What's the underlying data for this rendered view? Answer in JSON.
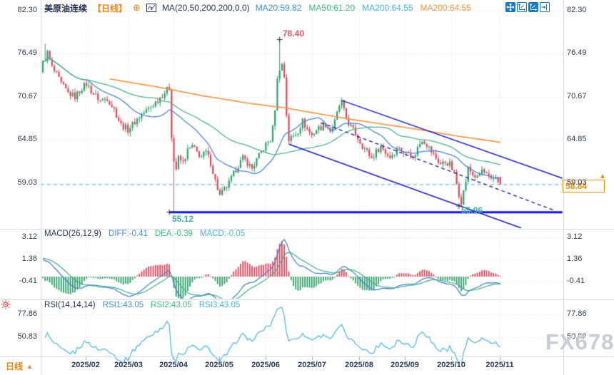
{
  "header": {
    "symbol": "美原油连续",
    "period_tag": "【日线】",
    "ma_settings": "MA(20,50,200,200,0,0)",
    "ma_values": [
      {
        "label": "MA20:59.82",
        "color": "#3f8fdd"
      },
      {
        "label": "MA50:61.20",
        "color": "#3dbd7d"
      },
      {
        "label": "MA200:64.55",
        "color": "#45b5e8"
      },
      {
        "label": "MA200:64.55",
        "color": "#f5923e"
      }
    ]
  },
  "toolbar": {
    "icons": [
      "pan-icon",
      "axis-scale-icon",
      "axis-scale-active-icon",
      "collapse-panel-icon"
    ]
  },
  "macd_panel": {
    "title": "MACD(26,12,9)",
    "values": [
      {
        "label": "DIFF:-0.41",
        "color": "#3f8fdd"
      },
      {
        "label": "DEA:-0.39",
        "color": "#3dbd7d"
      },
      {
        "label": "MACD:-0.05",
        "color": "#45b5e8"
      }
    ]
  },
  "rsi_panel": {
    "title": "RSI(14,14,14)",
    "values": [
      {
        "label": "RSI1:43.05",
        "color": "#3f8fdd"
      },
      {
        "label": "RSI2:43.05",
        "color": "#3dbd7d"
      },
      {
        "label": "RSI3:43.05",
        "color": "#45b5e8"
      }
    ]
  },
  "annotations": {
    "high_label": "78.40",
    "support_label": "55.12",
    "low_label": "55.96",
    "current_price": "58.84",
    "up_arrow": "▲"
  },
  "bottom_bar": {
    "period": "日线",
    "arrow": "▲"
  },
  "watermark": "FX678",
  "chart_data": {
    "type": "candlestick",
    "title": "美原油连续 daily (WTI crude continuous)",
    "timeframe": "daily",
    "months": [
      "2025/02",
      "2025/03",
      "2025/04",
      "2025/05",
      "2025/06",
      "2025/07",
      "2025/08",
      "2025/09",
      "2025/10",
      "2025/11"
    ],
    "y_ticks": {
      "main": [
        82.3,
        76.49,
        70.67,
        64.85,
        59.03
      ],
      "macd": [
        3.12,
        1.36,
        -0.41
      ],
      "rsi": [
        77.86,
        50.83
      ]
    },
    "key_levels": {
      "spike_high": 78.4,
      "support": 55.12,
      "october_low": 55.96,
      "last_price": 58.84,
      "ma20": 59.82,
      "ma50": 61.2,
      "ma200": 64.55,
      "diff": -0.41,
      "dea": -0.39,
      "macd": -0.05,
      "rsi": 43.05
    },
    "n_candles": 200,
    "open0": 74.0,
    "anchors": [
      [
        0,
        75.2
      ],
      [
        2,
        76.6
      ],
      [
        4,
        74.6
      ],
      [
        6,
        73.6
      ],
      [
        8,
        72.4
      ],
      [
        11,
        71.2
      ],
      [
        14,
        70.7
      ],
      [
        17,
        71.9
      ],
      [
        19,
        72.4
      ],
      [
        22,
        71.1
      ],
      [
        25,
        70.2
      ],
      [
        28,
        70.5
      ],
      [
        31,
        69.0
      ],
      [
        34,
        66.9
      ],
      [
        37,
        66.3
      ],
      [
        40,
        67.3
      ],
      [
        43,
        68.3
      ],
      [
        47,
        69.3
      ],
      [
        51,
        70.6
      ],
      [
        53,
        71.3
      ],
      [
        55,
        71.9
      ],
      [
        56,
        65.5
      ],
      [
        57,
        62.0
      ],
      [
        58,
        61.0
      ],
      [
        59,
        62.4
      ],
      [
        61,
        61.8
      ],
      [
        63,
        63.4
      ],
      [
        65,
        64.0
      ],
      [
        67,
        63.2
      ],
      [
        69,
        62.6
      ],
      [
        71,
        63.2
      ],
      [
        73,
        61.8
      ],
      [
        75,
        59.4
      ],
      [
        77,
        57.3
      ],
      [
        79,
        58.2
      ],
      [
        81,
        59.0
      ],
      [
        83,
        60.3
      ],
      [
        85,
        61.5
      ],
      [
        87,
        62.4
      ],
      [
        89,
        61.8
      ],
      [
        91,
        61.0
      ],
      [
        93,
        62.2
      ],
      [
        95,
        63.2
      ],
      [
        97,
        64.2
      ],
      [
        99,
        64.9
      ],
      [
        100,
        66.4
      ],
      [
        101,
        69.2
      ],
      [
        102,
        72.9
      ],
      [
        103,
        74.6
      ],
      [
        104,
        75.0
      ],
      [
        105,
        73.4
      ],
      [
        106,
        68.3
      ],
      [
        107,
        64.9
      ],
      [
        109,
        65.4
      ],
      [
        111,
        66.1
      ],
      [
        113,
        67.4
      ],
      [
        115,
        66.3
      ],
      [
        117,
        65.5
      ],
      [
        119,
        66.3
      ],
      [
        121,
        66.6
      ],
      [
        123,
        67.0
      ],
      [
        125,
        66.1
      ],
      [
        127,
        67.3
      ],
      [
        129,
        69.5
      ],
      [
        130,
        69.9
      ],
      [
        131,
        68.7
      ],
      [
        133,
        67.1
      ],
      [
        135,
        66.2
      ],
      [
        137,
        65.2
      ],
      [
        139,
        64.1
      ],
      [
        141,
        63.3
      ],
      [
        143,
        62.4
      ],
      [
        145,
        63.3
      ],
      [
        147,
        64.0
      ],
      [
        149,
        63.2
      ],
      [
        151,
        62.6
      ],
      [
        153,
        63.3
      ],
      [
        155,
        64.0
      ],
      [
        157,
        62.9
      ],
      [
        159,
        63.6
      ],
      [
        161,
        62.3
      ],
      [
        163,
        63.8
      ],
      [
        165,
        65.0
      ],
      [
        167,
        64.3
      ],
      [
        169,
        63.3
      ],
      [
        171,
        62.4
      ],
      [
        173,
        61.6
      ],
      [
        175,
        61.9
      ],
      [
        177,
        61.6
      ],
      [
        179,
        60.3
      ],
      [
        180,
        58.9
      ],
      [
        181,
        57.6
      ],
      [
        182,
        56.6
      ],
      [
        183,
        57.9
      ],
      [
        184,
        59.4
      ],
      [
        185,
        61.0
      ],
      [
        186,
        60.6
      ],
      [
        187,
        60.2
      ],
      [
        189,
        59.7
      ],
      [
        191,
        60.8
      ],
      [
        193,
        60.1
      ],
      [
        195,
        59.3
      ],
      [
        197,
        60.0
      ],
      [
        199,
        58.84
      ]
    ],
    "specials": [
      {
        "i": 1,
        "h": 77.85
      },
      {
        "i": 57,
        "l": 55.12
      },
      {
        "i": 103,
        "h": 78.4
      },
      {
        "i": 182,
        "l": 55.96
      },
      {
        "i": 199,
        "o": 59.9,
        "c": 58.84
      }
    ],
    "ma200_anchors": [
      [
        29,
        73.1
      ],
      [
        50,
        72.0
      ],
      [
        70,
        70.8
      ],
      [
        90,
        69.8
      ],
      [
        105,
        69.2
      ],
      [
        120,
        68.4
      ],
      [
        135,
        67.6
      ],
      [
        150,
        66.9
      ],
      [
        165,
        66.2
      ],
      [
        180,
        65.4
      ],
      [
        199,
        64.55
      ]
    ],
    "trendlines": [
      {
        "name": "support-line",
        "style": "solid",
        "width": 3,
        "color": "#1212e8",
        "points_ip": [
          [
            55,
            55.12
          ],
          [
            226,
            55.12
          ]
        ]
      },
      {
        "name": "current-price-line",
        "style": "dashed",
        "width": 1.2,
        "color": "#4aa4f4",
        "points_ip": [
          [
            -1,
            58.84
          ],
          [
            226,
            58.84
          ]
        ]
      },
      {
        "name": "channel-upper",
        "style": "solid",
        "width": 1.5,
        "color": "#1a1ace",
        "points_ip": [
          [
            130,
            70.2
          ],
          [
            226,
            59.7
          ]
        ]
      },
      {
        "name": "channel-lower",
        "style": "solid",
        "width": 1.5,
        "color": "#1a1ace",
        "points_ip": [
          [
            107,
            64.3
          ],
          [
            208,
            53.0
          ]
        ]
      },
      {
        "name": "channel-mid",
        "style": "dashed",
        "width": 1.3,
        "color": "#15159e",
        "points_ip": [
          [
            121,
            67.2
          ],
          [
            223,
            55.3
          ]
        ]
      }
    ],
    "markers": [
      {
        "i": 103,
        "p": 78.4
      },
      {
        "i": 55,
        "p": 55.12
      },
      {
        "i": 181,
        "p": 55.96
      }
    ],
    "colors": {
      "up": "#27a269",
      "down": "#e2455a",
      "ma20": "#4a86d9",
      "ma50": "#4db48a",
      "ma200": "#f5923e",
      "hist_pos": "#e2455a",
      "hist_neg": "#2fa06a",
      "diff": "#3a7bd5",
      "dea": "#3cae82",
      "rsi": "#45b3e3",
      "grid": "#dcdcdc",
      "tick": "#9aa3b2"
    }
  }
}
